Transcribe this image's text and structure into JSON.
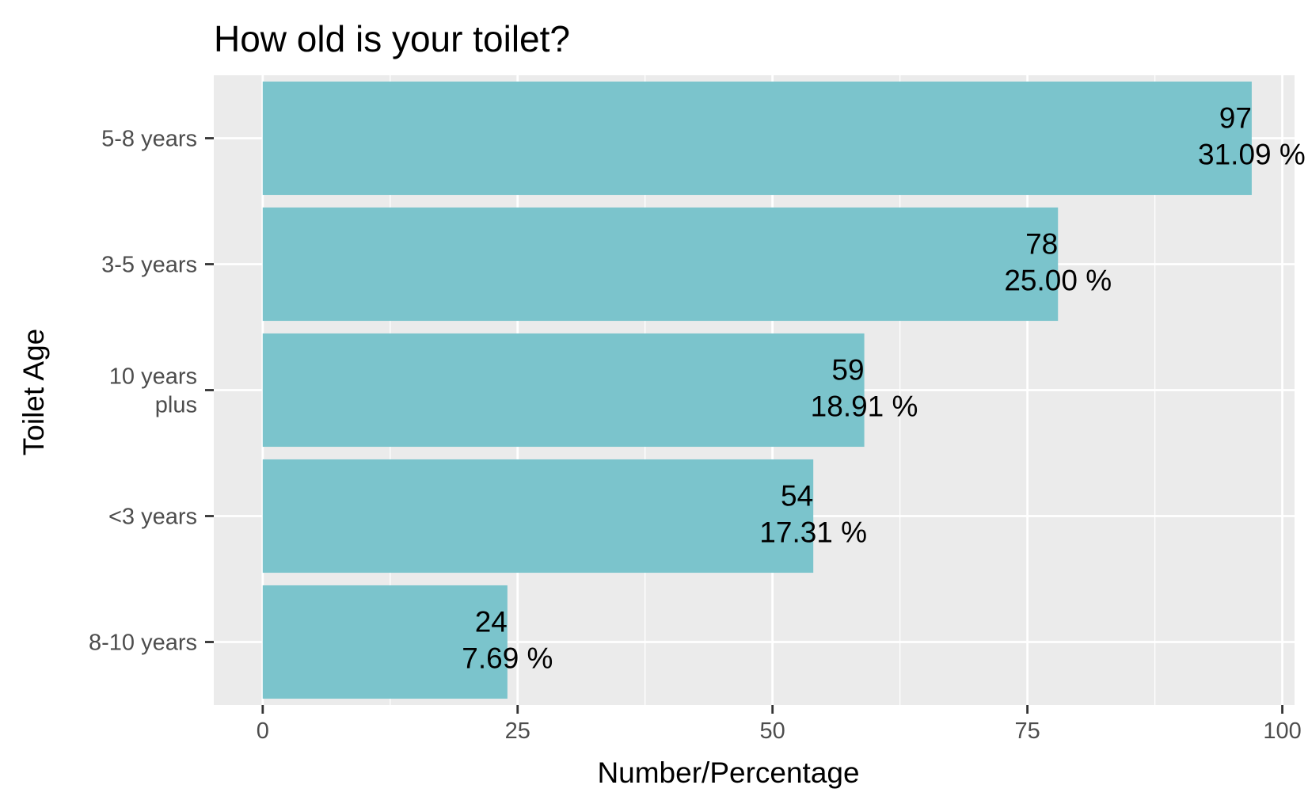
{
  "chart_data": {
    "type": "bar",
    "orientation": "horizontal",
    "title": "How old is your toilet?",
    "xlabel": "Number/Percentage",
    "ylabel": "Toilet Age",
    "categories": [
      "5-8 years",
      "3-5 years",
      "10 years plus",
      "<3 years",
      "8-10 years"
    ],
    "category_label_lines": [
      [
        "5-8 years"
      ],
      [
        "3-5 years"
      ],
      [
        "10 years",
        "plus"
      ],
      [
        "<3 years"
      ],
      [
        "8-10 years"
      ]
    ],
    "values": [
      97,
      78,
      59,
      54,
      24
    ],
    "percent_labels": [
      "31.09 %",
      "25.00 %",
      "18.91 %",
      "17.31 %",
      "7.69 %"
    ],
    "xlim": [
      -4.8,
      101.2
    ],
    "xticks": [
      0,
      25,
      50,
      75,
      100
    ],
    "xtick_labels": [
      "0",
      "25",
      "50",
      "75",
      "100"
    ],
    "grid": true,
    "colors": {
      "bar": "#7BC4CC",
      "panel": "#EBEBEB",
      "grid": "#FFFFFF",
      "tick": "#333333"
    }
  }
}
